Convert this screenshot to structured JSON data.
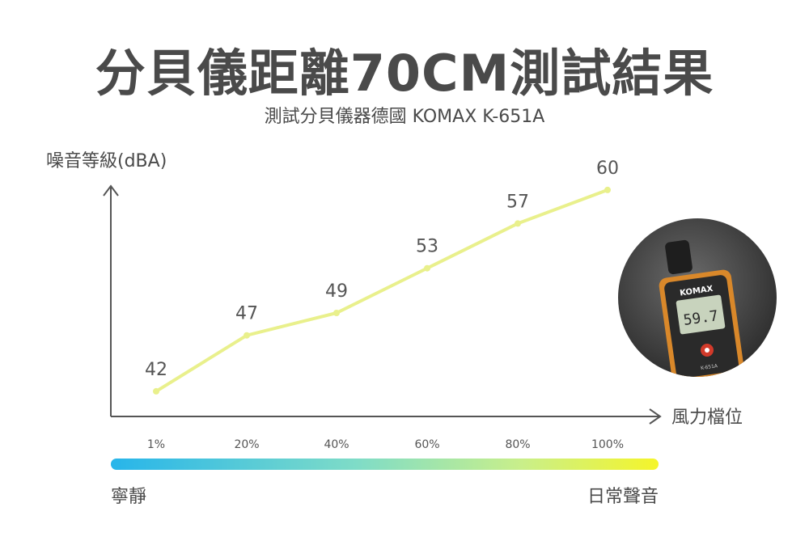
{
  "header": {
    "title": "分貝儀距離70CM測試結果",
    "subtitle": "測試分貝儀器德國 KOMAX K-651A"
  },
  "chart_data": {
    "type": "line",
    "title": "分貝儀距離70CM測試結果",
    "subtitle": "測試分貝儀器德國 KOMAX K-651A",
    "ylabel": "噪音等級(dBA)",
    "xlabel": "風力檔位",
    "categories": [
      "1%",
      "20%",
      "40%",
      "60%",
      "80%",
      "100%"
    ],
    "series": [
      {
        "values": [
          42,
          47,
          49,
          53,
          57,
          60
        ]
      }
    ],
    "ylim": [
      35,
      65
    ],
    "grid": false,
    "line_color": "#e9f08c"
  },
  "scale": {
    "low_label": "寧靜",
    "high_label": "日常聲音"
  },
  "photo": {
    "brand": "KOMAX",
    "reading": "59.7",
    "model": "K-651A"
  }
}
